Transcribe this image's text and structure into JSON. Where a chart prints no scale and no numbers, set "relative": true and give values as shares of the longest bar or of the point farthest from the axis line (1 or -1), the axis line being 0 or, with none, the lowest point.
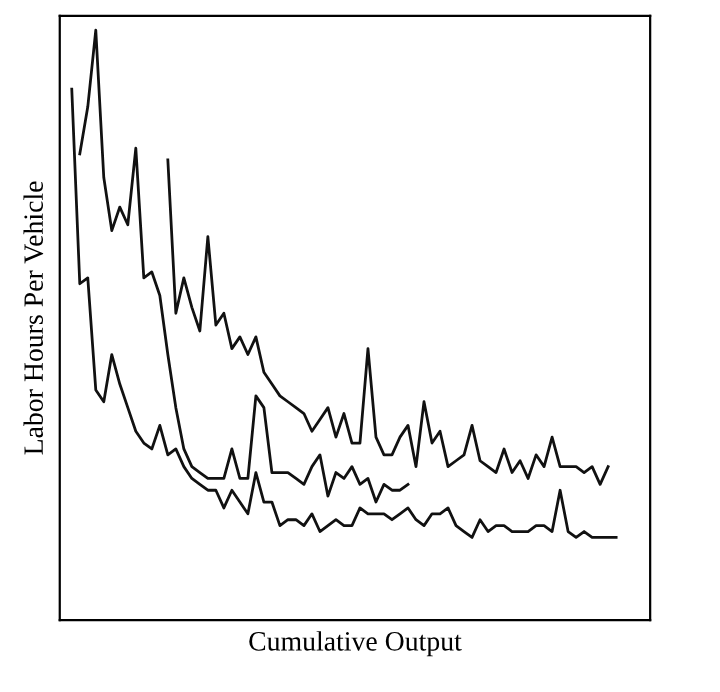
{
  "chart_data": {
    "type": "line",
    "xlabel": "Cumulative Output",
    "ylabel": "Labor Hours Per Vehicle",
    "relative": true,
    "tick_labels": false,
    "line_style": "solid",
    "categories": [
      null,
      null,
      null,
      null,
      null,
      null,
      null,
      null,
      null,
      null,
      null,
      null,
      null,
      null,
      null,
      null,
      null,
      null,
      null,
      null,
      null,
      null,
      null,
      null,
      null,
      null,
      null,
      null,
      null,
      null,
      null,
      null,
      null,
      null,
      null,
      null,
      null,
      null,
      null,
      null,
      null,
      null,
      null,
      null,
      null,
      null,
      null,
      null,
      null,
      null,
      null,
      null,
      null,
      null,
      null,
      null,
      null,
      null,
      null,
      null,
      null,
      null,
      null,
      null,
      null,
      null,
      null,
      null,
      null
    ],
    "series": [
      {
        "color": "#111111",
        "values": [
          0.9,
          0.57,
          0.58,
          0.39,
          0.37,
          0.45,
          0.4,
          0.36,
          0.32,
          0.3,
          0.29,
          0.33,
          0.28,
          0.29,
          0.26,
          0.24,
          0.23,
          0.22,
          0.22,
          0.19,
          0.22,
          0.2,
          0.18,
          0.25,
          0.2,
          0.2,
          0.16,
          0.17,
          0.17,
          0.16,
          0.18,
          0.15,
          0.16,
          0.17,
          0.16,
          0.16,
          0.19,
          0.18,
          0.18,
          0.18,
          0.17,
          0.18,
          0.19,
          0.17,
          0.16,
          0.18,
          0.18,
          0.19,
          0.16,
          0.15,
          0.14,
          0.17,
          0.15,
          0.16,
          0.16,
          0.15,
          0.15,
          0.15,
          0.16,
          0.16,
          0.15,
          0.22,
          0.15,
          0.14,
          0.15,
          0.14,
          0.14,
          0.14,
          0.14
        ]
      },
      {
        "color": "#111111",
        "values": [
          null,
          0.79,
          0.87,
          1.0,
          0.75,
          0.66,
          0.7,
          0.67,
          0.8,
          0.58,
          0.59,
          0.55,
          0.45,
          0.36,
          0.29,
          0.26,
          0.25,
          0.24,
          0.24,
          0.24,
          0.29,
          0.24,
          0.24,
          0.38,
          0.36,
          0.25,
          0.25,
          0.25,
          0.24,
          0.23,
          0.26,
          0.28,
          0.21,
          0.25,
          0.24,
          0.26,
          0.23,
          0.24,
          0.2,
          0.23,
          0.22,
          0.22,
          0.23,
          null,
          null,
          null,
          null,
          null,
          null,
          null,
          null,
          null,
          null,
          null,
          null,
          null,
          null,
          null,
          null,
          null,
          null,
          null,
          null,
          null,
          null,
          null,
          null,
          null,
          null
        ]
      },
      {
        "color": "#111111",
        "values": [
          null,
          null,
          null,
          null,
          null,
          null,
          null,
          null,
          null,
          null,
          null,
          null,
          0.78,
          0.52,
          0.58,
          0.53,
          0.49,
          0.65,
          0.5,
          0.52,
          0.46,
          0.48,
          0.45,
          0.48,
          0.42,
          0.4,
          0.38,
          0.37,
          0.36,
          0.35,
          0.32,
          0.34,
          0.36,
          0.31,
          0.35,
          0.3,
          0.3,
          0.46,
          0.31,
          0.28,
          0.28,
          0.31,
          0.33,
          0.26,
          0.37,
          0.3,
          0.32,
          0.26,
          0.27,
          0.28,
          0.33,
          0.27,
          0.26,
          0.25,
          0.29,
          0.25,
          0.27,
          0.24,
          0.28,
          0.26,
          0.31,
          0.26,
          0.26,
          0.26,
          0.25,
          0.26,
          0.23,
          0.26,
          null
        ]
      }
    ]
  }
}
